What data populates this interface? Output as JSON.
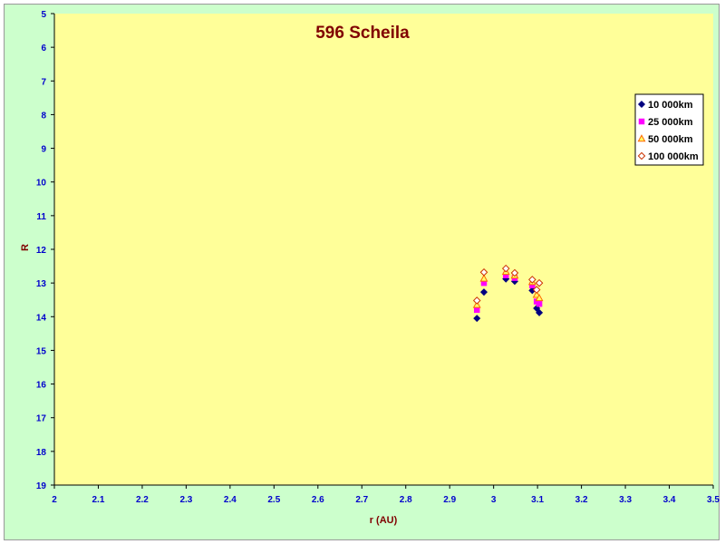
{
  "chart_data": {
    "type": "scatter",
    "title": "596 Scheila",
    "xlabel": "r (AU)",
    "ylabel": "R",
    "xlim": [
      2,
      3.5
    ],
    "ylim": [
      5,
      19
    ],
    "y_inverted": true,
    "x_ticks": [
      "2",
      "2.1",
      "2.2",
      "2.3",
      "2.4",
      "2.5",
      "2.6",
      "2.7",
      "2.8",
      "2.9",
      "3",
      "3.1",
      "3.2",
      "3.3",
      "3.4",
      "3.5"
    ],
    "y_ticks": [
      "5",
      "6",
      "7",
      "8",
      "9",
      "10",
      "11",
      "12",
      "13",
      "14",
      "15",
      "16",
      "17",
      "18",
      "19"
    ],
    "grid": false,
    "legend_position": "top-right",
    "background_color": "#ffff99",
    "frame_color": "#ccffcc",
    "series": [
      {
        "name": "10 000km",
        "marker": "diamond",
        "color": "#000080",
        "points": [
          [
            2.962,
            14.05
          ],
          [
            2.978,
            13.27
          ],
          [
            3.028,
            12.88
          ],
          [
            3.048,
            12.95
          ],
          [
            3.088,
            13.22
          ],
          [
            3.098,
            13.75
          ],
          [
            3.104,
            13.88
          ]
        ]
      },
      {
        "name": "25 000km",
        "marker": "square",
        "color": "#ff00ff",
        "points": [
          [
            2.962,
            13.8
          ],
          [
            2.978,
            13.0
          ],
          [
            3.028,
            12.77
          ],
          [
            3.048,
            12.85
          ],
          [
            3.088,
            13.07
          ],
          [
            3.098,
            13.55
          ],
          [
            3.104,
            13.62
          ]
        ]
      },
      {
        "name": "50 000km",
        "marker": "triangle",
        "color": "#ff6600",
        "points": [
          [
            2.962,
            13.65
          ],
          [
            2.978,
            12.87
          ],
          [
            3.028,
            12.67
          ],
          [
            3.048,
            12.78
          ],
          [
            3.088,
            12.97
          ],
          [
            3.098,
            13.35
          ],
          [
            3.104,
            13.45
          ]
        ]
      },
      {
        "name": "100 000km",
        "marker": "open-diamond",
        "color": "#cc3300",
        "points": [
          [
            2.962,
            13.52
          ],
          [
            2.978,
            12.68
          ],
          [
            3.028,
            12.57
          ],
          [
            3.048,
            12.7
          ],
          [
            3.088,
            12.9
          ],
          [
            3.098,
            13.2
          ],
          [
            3.104,
            13.0
          ]
        ]
      }
    ]
  }
}
